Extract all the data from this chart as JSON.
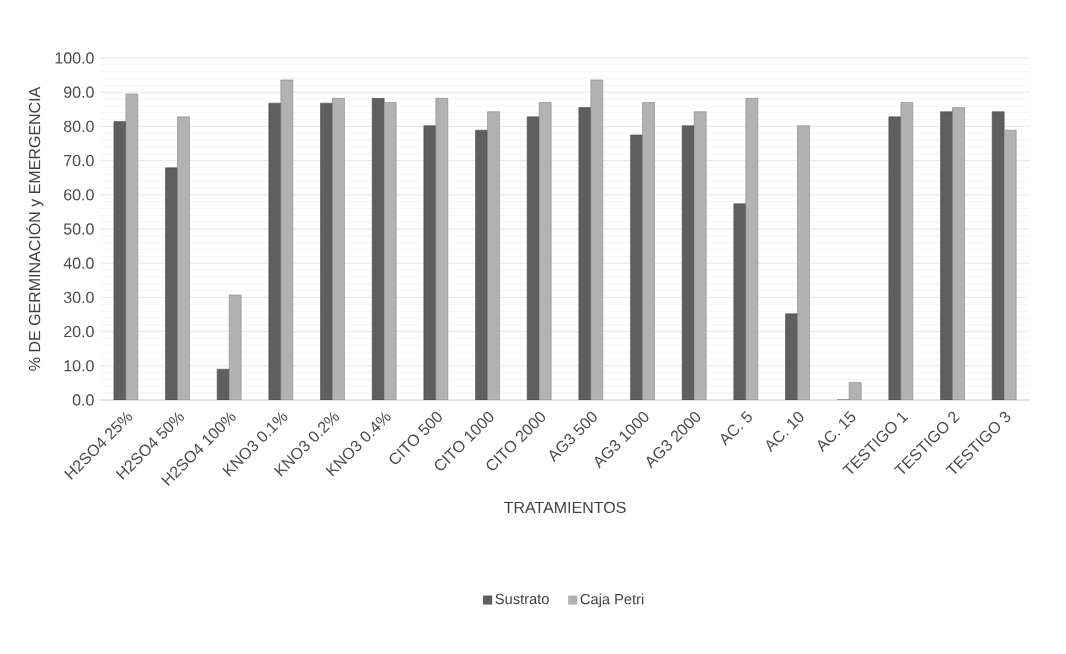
{
  "chart_data": {
    "type": "bar",
    "xlabel": "TRATAMIENTOS",
    "ylabel": "% DE GERMINACIÓN y EMERGENCIA",
    "categories": [
      "H2SO4 25%",
      "H2SO4 50%",
      "H2SO4 100%",
      "KNO3 0.1%",
      "KNO3 0.2%",
      "KNO3 0.4%",
      "CITO 500",
      "CITO 1000",
      "CITO 2000",
      "AG3 500",
      "AG3 1000",
      "AG3 2000",
      "AC. 5",
      "AC. 10",
      "AC. 15",
      "TESTIGO 1",
      "TESTIGO 2",
      "TESTIGO 3"
    ],
    "series": [
      {
        "name": "Sustrato",
        "color": "#5f5f5f",
        "values": [
          81.4,
          67.9,
          9.0,
          86.8,
          86.8,
          88.2,
          80.2,
          78.9,
          82.8,
          85.5,
          77.5,
          80.2,
          57.4,
          25.2,
          0,
          82.8,
          84.3,
          84.3
        ]
      },
      {
        "name": "Caja Petri",
        "color": "#b2b2b2",
        "values": [
          89.5,
          82.8,
          30.7,
          93.6,
          88.2,
          87.0,
          88.2,
          84.3,
          87.0,
          93.6,
          87.0,
          84.3,
          88.2,
          80.2,
          5.1,
          87.0,
          85.5,
          78.9
        ]
      }
    ],
    "ylim": [
      0,
      100
    ],
    "yticks": [
      {
        "value": 0,
        "label": "0.0"
      },
      {
        "value": 10,
        "label": "10.0"
      },
      {
        "value": 20,
        "label": "20.0"
      },
      {
        "value": 30,
        "label": "30.0"
      },
      {
        "value": 40,
        "label": "40.0"
      },
      {
        "value": 50,
        "label": "50.0"
      },
      {
        "value": 60,
        "label": "60.0"
      },
      {
        "value": 70,
        "label": "70.0"
      },
      {
        "value": 80,
        "label": "80.0"
      },
      {
        "value": 90,
        "label": "90.0"
      },
      {
        "value": 100,
        "label": "100.0"
      }
    ],
    "grid": "y",
    "legend": "bottom"
  }
}
